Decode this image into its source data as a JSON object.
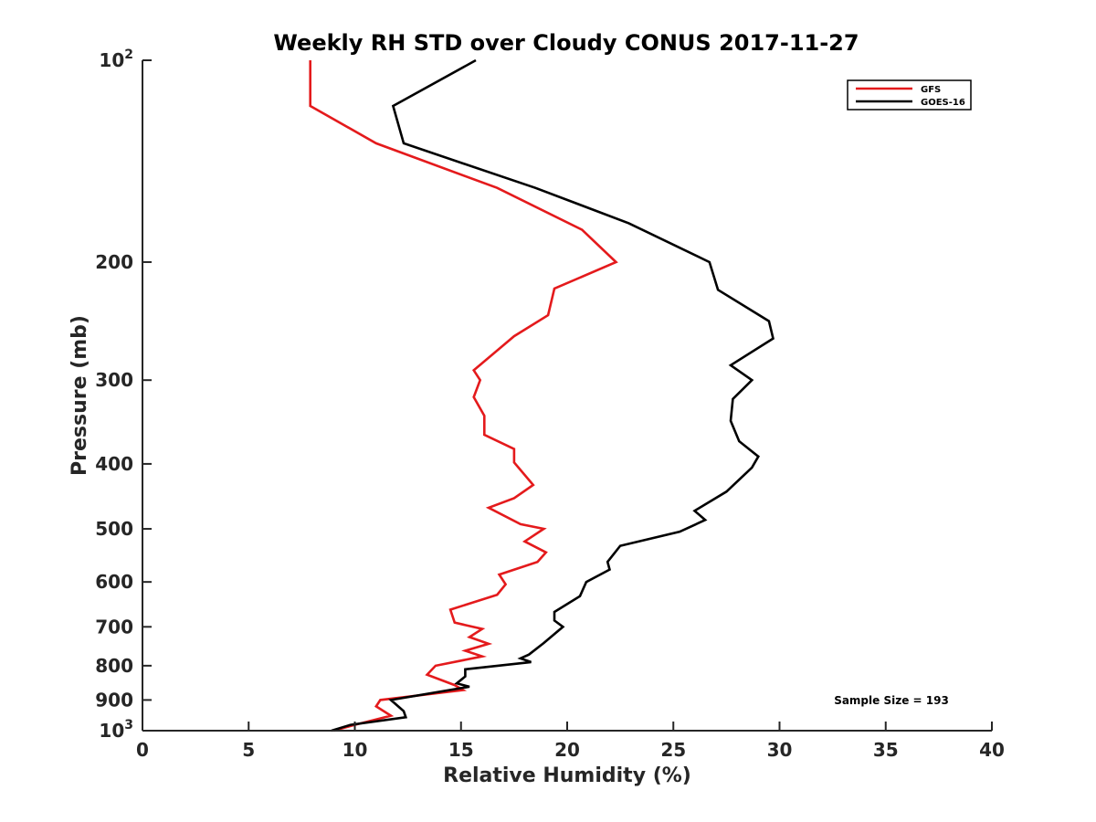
{
  "chart_data": {
    "type": "line",
    "title": "Weekly RH STD over Cloudy CONUS 2017-11-27",
    "xlabel": "Relative Humidity (%)",
    "ylabel": "Pressure (mb)",
    "xlim": [
      0,
      40
    ],
    "ylim": [
      100,
      1000
    ],
    "y_scale": "log",
    "y_reversed": true,
    "grid": false,
    "legend_position": "top-right",
    "x_ticks": [
      0,
      5,
      10,
      15,
      20,
      25,
      30,
      35,
      40
    ],
    "x_tick_labels": [
      "0",
      "5",
      "10",
      "15",
      "20",
      "25",
      "30",
      "35",
      "40"
    ],
    "y_ticks": [
      100,
      200,
      300,
      400,
      500,
      600,
      700,
      800,
      900,
      1000
    ],
    "y_tick_labels": [
      {
        "base": "10",
        "exp": "2"
      },
      {
        "base": "200",
        "exp": ""
      },
      {
        "base": "300",
        "exp": ""
      },
      {
        "base": "400",
        "exp": ""
      },
      {
        "base": "500",
        "exp": ""
      },
      {
        "base": "600",
        "exp": ""
      },
      {
        "base": "700",
        "exp": ""
      },
      {
        "base": "800",
        "exp": ""
      },
      {
        "base": "900",
        "exp": ""
      },
      {
        "base": "10",
        "exp": "3"
      }
    ],
    "annotation": "Sample Size = 193",
    "series": [
      {
        "name": "GFS",
        "color": "#e41a1c",
        "points": [
          [
            7.9,
            100
          ],
          [
            7.9,
            117
          ],
          [
            11.0,
            133
          ],
          [
            16.7,
            155
          ],
          [
            20.7,
            179
          ],
          [
            22.3,
            200
          ],
          [
            19.4,
            219
          ],
          [
            19.1,
            240
          ],
          [
            17.5,
            258
          ],
          [
            15.6,
            290
          ],
          [
            15.9,
            300
          ],
          [
            15.6,
            318
          ],
          [
            16.1,
            339
          ],
          [
            16.1,
            362
          ],
          [
            17.5,
            380
          ],
          [
            17.5,
            398
          ],
          [
            18.4,
            430
          ],
          [
            17.5,
            450
          ],
          [
            16.3,
            465
          ],
          [
            17.8,
            492
          ],
          [
            18.9,
            500
          ],
          [
            18.0,
            522
          ],
          [
            19.0,
            542
          ],
          [
            18.6,
            560
          ],
          [
            16.8,
            585
          ],
          [
            17.1,
            605
          ],
          [
            16.7,
            627
          ],
          [
            14.5,
            660
          ],
          [
            14.7,
            690
          ],
          [
            16.0,
            705
          ],
          [
            15.4,
            725
          ],
          [
            16.3,
            742
          ],
          [
            15.2,
            760
          ],
          [
            16.0,
            775
          ],
          [
            13.8,
            800
          ],
          [
            13.4,
            825
          ],
          [
            14.7,
            855
          ],
          [
            15.1,
            870
          ],
          [
            11.2,
            900
          ],
          [
            11.0,
            920
          ],
          [
            11.7,
            950
          ],
          [
            10.0,
            980
          ],
          [
            9.0,
            1000
          ]
        ]
      },
      {
        "name": "GOES-16",
        "color": "#000000",
        "points": [
          [
            15.7,
            100
          ],
          [
            11.8,
            117
          ],
          [
            12.3,
            133
          ],
          [
            18.5,
            155
          ],
          [
            22.9,
            175
          ],
          [
            26.7,
            200
          ],
          [
            27.1,
            220
          ],
          [
            29.5,
            245
          ],
          [
            29.7,
            260
          ],
          [
            27.7,
            285
          ],
          [
            28.7,
            300
          ],
          [
            27.8,
            320
          ],
          [
            27.7,
            345
          ],
          [
            28.1,
            370
          ],
          [
            29.0,
            390
          ],
          [
            28.7,
            405
          ],
          [
            27.5,
            440
          ],
          [
            26.0,
            470
          ],
          [
            26.5,
            485
          ],
          [
            25.3,
            505
          ],
          [
            22.5,
            530
          ],
          [
            21.9,
            560
          ],
          [
            22.0,
            575
          ],
          [
            20.9,
            600
          ],
          [
            20.6,
            630
          ],
          [
            19.4,
            665
          ],
          [
            19.4,
            685
          ],
          [
            19.8,
            700
          ],
          [
            18.9,
            740
          ],
          [
            18.2,
            770
          ],
          [
            17.8,
            780
          ],
          [
            18.3,
            790
          ],
          [
            15.2,
            810
          ],
          [
            15.2,
            830
          ],
          [
            14.8,
            850
          ],
          [
            15.4,
            860
          ],
          [
            11.7,
            900
          ],
          [
            12.3,
            935
          ],
          [
            12.4,
            955
          ],
          [
            9.8,
            980
          ],
          [
            8.9,
            1000
          ]
        ]
      }
    ]
  }
}
